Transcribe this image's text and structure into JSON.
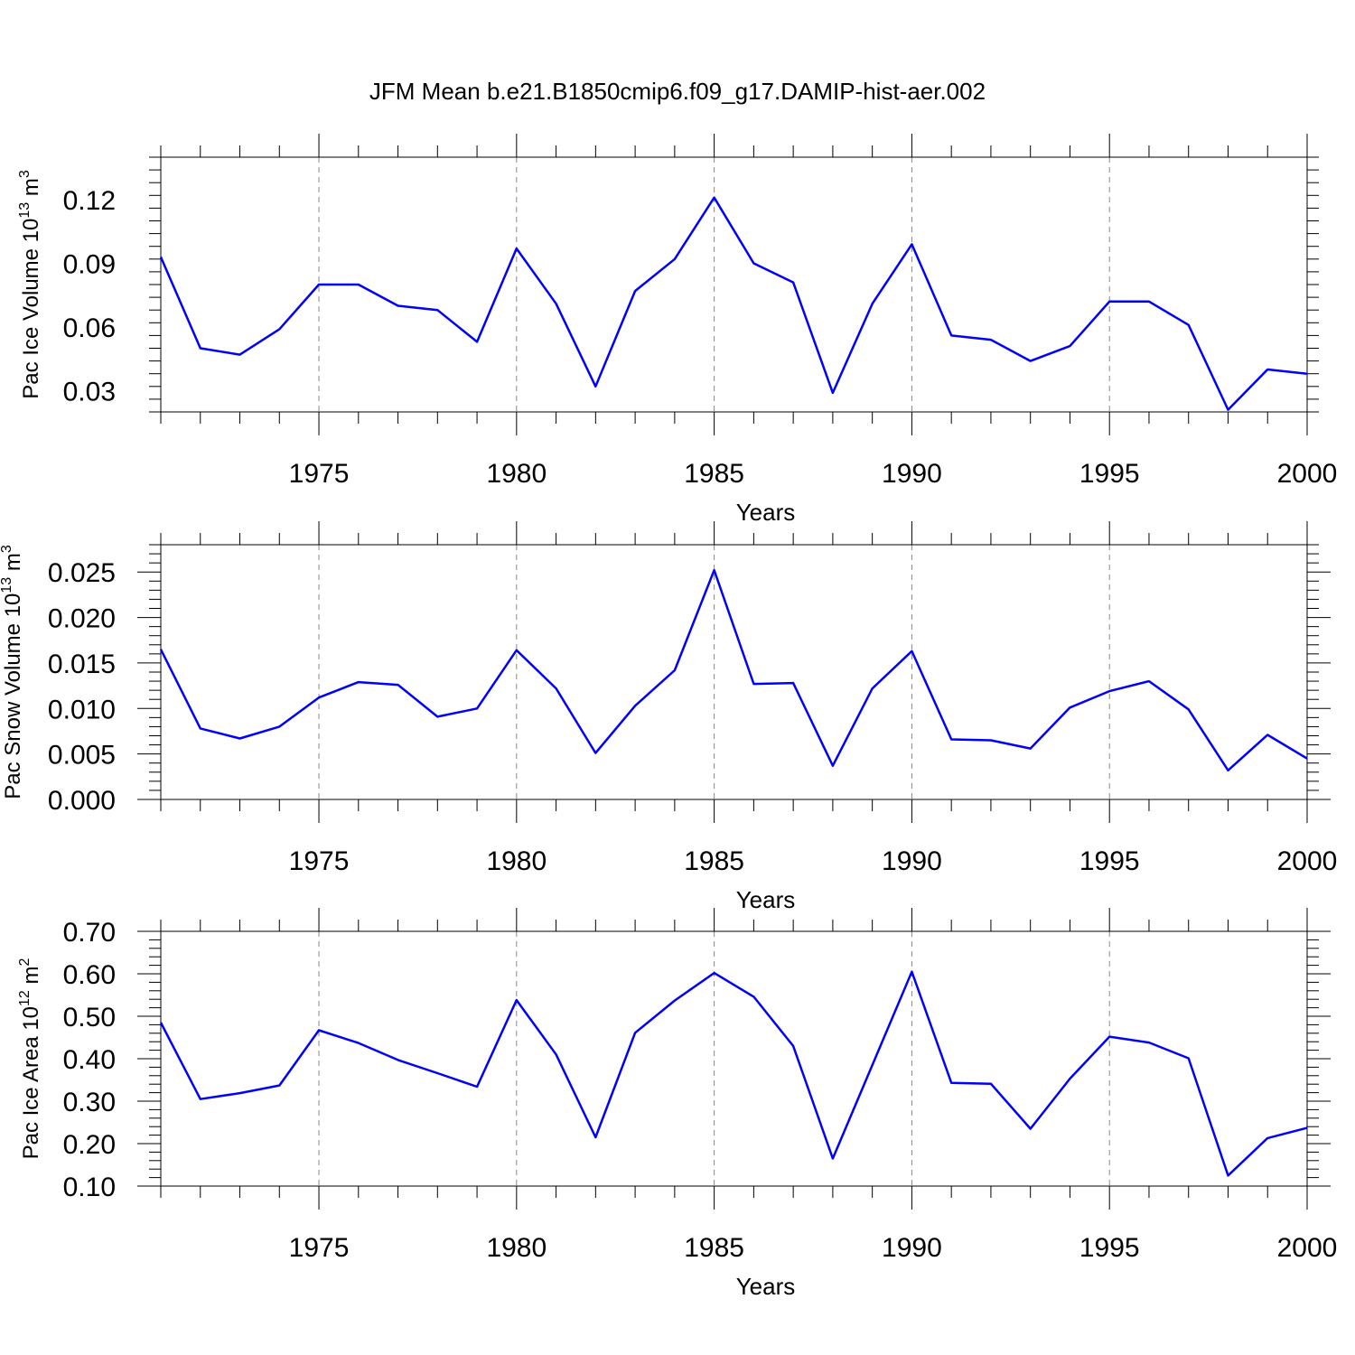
{
  "colors": {
    "line": "#0000ff",
    "axis": "#000000",
    "grid": "#888888"
  },
  "title": "JFM Mean b.e21.B1850cmip6.f09_g17.DAMIP-hist-aer.002",
  "chart_data": [
    {
      "type": "line",
      "title": "",
      "ylabel": "Pac Ice Volume 10",
      "ylabel_exp": "13",
      "ylabel_unit": " m",
      "ylabel_unit_exp": "3",
      "xlabel": "Years",
      "xlim": [
        1971,
        2000
      ],
      "ylim": [
        0.02,
        0.14
      ],
      "xticks": [
        1975,
        1980,
        1985,
        1990,
        1995,
        2000
      ],
      "xtick_labels": [
        "1975",
        "1980",
        "1985",
        "1990",
        "1995",
        "2000"
      ],
      "yticks": [
        0.03,
        0.06,
        0.09,
        0.12
      ],
      "ytick_labels": [
        "0.03",
        "0.06",
        "0.09",
        "0.12"
      ],
      "grid": "vertical dashed at major x ticks",
      "x": [
        1971,
        1972,
        1973,
        1974,
        1975,
        1976,
        1977,
        1978,
        1979,
        1980,
        1981,
        1982,
        1983,
        1984,
        1985,
        1986,
        1987,
        1988,
        1989,
        1990,
        1991,
        1992,
        1993,
        1994,
        1995,
        1996,
        1997,
        1998,
        1999,
        2000
      ],
      "series": [
        {
          "values": [
            0.093,
            0.05,
            0.047,
            0.059,
            0.08,
            0.08,
            0.07,
            0.068,
            0.053,
            0.097,
            0.071,
            0.032,
            0.077,
            0.092,
            0.121,
            0.09,
            0.081,
            0.029,
            0.071,
            0.099,
            0.056,
            0.054,
            0.044,
            0.051,
            0.072,
            0.072,
            0.061,
            0.021,
            0.04,
            0.038
          ]
        }
      ]
    },
    {
      "type": "line",
      "title": "",
      "ylabel": "Pac Snow Volume 10",
      "ylabel_exp": "13",
      "ylabel_unit": " m",
      "ylabel_unit_exp": "3",
      "xlabel": "Years",
      "xlim": [
        1971,
        2000
      ],
      "ylim": [
        0.0,
        0.028
      ],
      "xticks": [
        1975,
        1980,
        1985,
        1990,
        1995,
        2000
      ],
      "xtick_labels": [
        "1975",
        "1980",
        "1985",
        "1990",
        "1995",
        "2000"
      ],
      "yticks": [
        0.0,
        0.005,
        0.01,
        0.015,
        0.02,
        0.025
      ],
      "ytick_labels": [
        "0.000",
        "0.005",
        "0.010",
        "0.015",
        "0.020",
        "0.025"
      ],
      "grid": "vertical dashed at major x ticks",
      "x": [
        1971,
        1972,
        1973,
        1974,
        1975,
        1976,
        1977,
        1978,
        1979,
        1980,
        1981,
        1982,
        1983,
        1984,
        1985,
        1986,
        1987,
        1988,
        1989,
        1990,
        1991,
        1992,
        1993,
        1994,
        1995,
        1996,
        1997,
        1998,
        1999,
        2000
      ],
      "series": [
        {
          "values": [
            0.0165,
            0.0078,
            0.0067,
            0.008,
            0.0112,
            0.0129,
            0.0126,
            0.0091,
            0.01,
            0.0164,
            0.0122,
            0.0051,
            0.0103,
            0.0142,
            0.0252,
            0.0127,
            0.0128,
            0.0037,
            0.0122,
            0.0163,
            0.0066,
            0.0065,
            0.0056,
            0.0101,
            0.0119,
            0.013,
            0.0099,
            0.0032,
            0.0071,
            0.0045
          ]
        }
      ]
    },
    {
      "type": "line",
      "title": "",
      "ylabel": "Pac Ice Area 10",
      "ylabel_exp": "12",
      "ylabel_unit": " m",
      "ylabel_unit_exp": "2",
      "xlabel": "Years",
      "xlim": [
        1971,
        2000
      ],
      "ylim": [
        0.1,
        0.7
      ],
      "xticks": [
        1975,
        1980,
        1985,
        1990,
        1995,
        2000
      ],
      "xtick_labels": [
        "1975",
        "1980",
        "1985",
        "1990",
        "1995",
        "2000"
      ],
      "yticks": [
        0.1,
        0.2,
        0.3,
        0.4,
        0.5,
        0.6,
        0.7
      ],
      "ytick_labels": [
        "0.10",
        "0.20",
        "0.30",
        "0.40",
        "0.50",
        "0.60",
        "0.70"
      ],
      "grid": "vertical dashed at major x ticks",
      "x": [
        1971,
        1972,
        1973,
        1974,
        1975,
        1976,
        1977,
        1978,
        1979,
        1980,
        1981,
        1982,
        1983,
        1984,
        1985,
        1986,
        1987,
        1988,
        1989,
        1990,
        1991,
        1992,
        1993,
        1994,
        1995,
        1996,
        1997,
        1998,
        1999,
        2000
      ],
      "series": [
        {
          "values": [
            0.485,
            0.305,
            0.319,
            0.337,
            0.467,
            0.437,
            0.397,
            0.366,
            0.334,
            0.538,
            0.41,
            0.215,
            0.461,
            0.537,
            0.602,
            0.546,
            0.43,
            0.165,
            0.385,
            0.605,
            0.343,
            0.341,
            0.235,
            0.353,
            0.452,
            0.438,
            0.401,
            0.125,
            0.213,
            0.237
          ]
        }
      ]
    }
  ]
}
